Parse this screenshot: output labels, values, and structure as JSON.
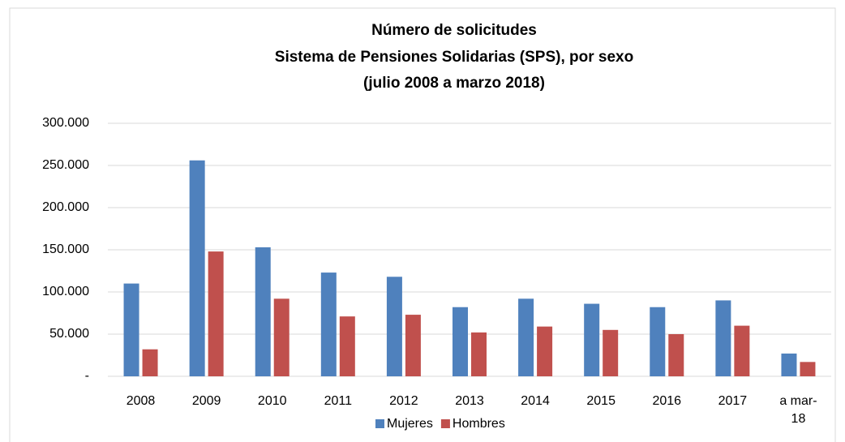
{
  "chart_data": {
    "type": "bar",
    "title": [
      "Número de solicitudes",
      "Sistema de Pensiones Solidarias (SPS), por sexo",
      "(julio 2008 a marzo 2018)"
    ],
    "categories": [
      "2008",
      "2009",
      "2010",
      "2011",
      "2012",
      "2013",
      "2014",
      "2015",
      "2016",
      "2017",
      "a mar-18"
    ],
    "series": [
      {
        "name": "Mujeres",
        "color": "#4f81bd",
        "values": [
          110000,
          256000,
          153000,
          123000,
          118000,
          82000,
          92000,
          86000,
          82000,
          90000,
          27000
        ]
      },
      {
        "name": "Hombres",
        "color": "#c0504d",
        "values": [
          32000,
          148000,
          92000,
          71000,
          73000,
          52000,
          59000,
          55000,
          50000,
          60000,
          17000
        ]
      }
    ],
    "ylim": [
      0,
      300000
    ],
    "yticks": [
      {
        "value": 0,
        "label": "-"
      },
      {
        "value": 50000,
        "label": "50.000"
      },
      {
        "value": 100000,
        "label": "100.000"
      },
      {
        "value": 150000,
        "label": "150.000"
      },
      {
        "value": 200000,
        "label": "200.000"
      },
      {
        "value": 250000,
        "label": "250.000"
      },
      {
        "value": 300000,
        "label": "300.000"
      }
    ],
    "grid": true,
    "legend": "bottom"
  }
}
